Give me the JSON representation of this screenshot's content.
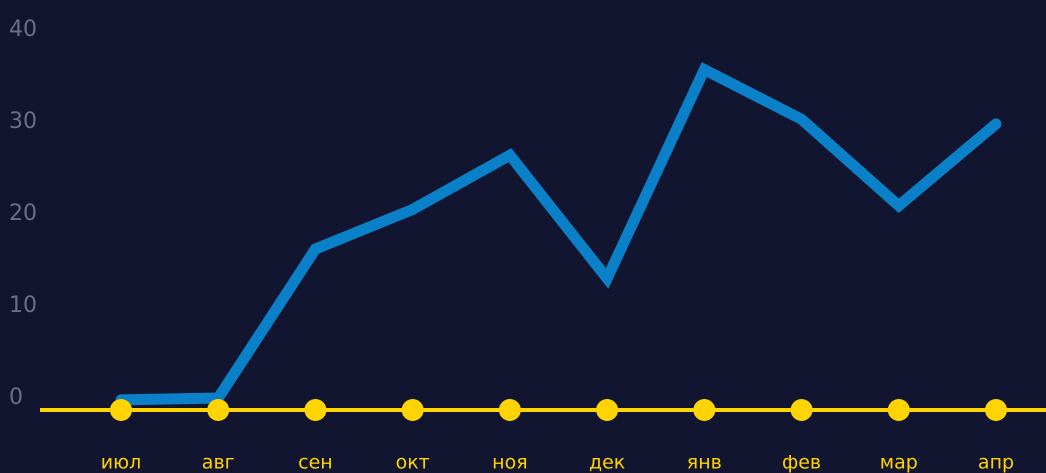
{
  "chart_data": {
    "type": "line",
    "categories": [
      "июл",
      "авг",
      "сен",
      "окт",
      "ноя",
      "дек",
      "янв",
      "фев",
      "мар",
      "апр"
    ],
    "series": [
      {
        "color": "#0a80c8",
        "values": [
          1.1,
          1.3,
          17.5,
          21.8,
          27.7,
          14.3,
          37,
          31.6,
          22.2,
          31.1
        ]
      },
      {
        "color": "#ffd400",
        "values": [
          0,
          0,
          0,
          0,
          0,
          0,
          0,
          0,
          0,
          0
        ]
      }
    ],
    "ylim": [
      0,
      40
    ],
    "yticks": [
      0,
      10,
      20,
      30,
      40
    ],
    "grid": false
  }
}
